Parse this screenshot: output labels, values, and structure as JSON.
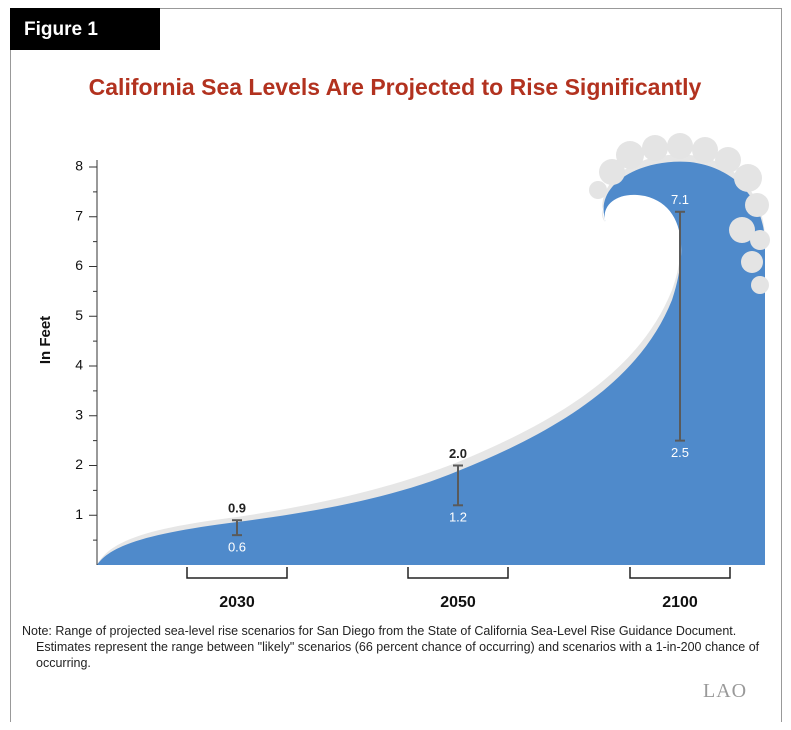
{
  "figure_label": "Figure 1",
  "chart_data": {
    "type": "range",
    "title": "California Sea Levels Are Projected to Rise Significantly",
    "y_label": "In Feet",
    "categories": [
      "2030",
      "2050",
      "2100"
    ],
    "series": [
      {
        "values": [
          0.9,
          2.0,
          7.1
        ],
        "value_labels": [
          "0.9",
          "2.0",
          "7.1"
        ],
        "label_colors": [
          "#222222",
          "#222222",
          "#ffffff"
        ]
      },
      {
        "values": [
          0.6,
          1.2,
          2.5
        ],
        "value_labels": [
          "0.6",
          "1.2",
          "2.5"
        ],
        "label_colors": [
          "#ffffff",
          "#ffffff",
          "#ffffff"
        ]
      }
    ],
    "color": "#5a5a5a",
    "ylim": [
      0,
      8
    ],
    "yticks": [
      1,
      2,
      3,
      4,
      5,
      6,
      7,
      8
    ]
  },
  "note": "Note: Range of projected sea-level rise scenarios for San Diego from the State of California Sea-Level Rise Guidance Document. Estimates represent the range between \"likely\" scenarios (66 percent chance of occurring) and scenarios with a 1-in-200 chance of occurring.",
  "logo": "LAO"
}
